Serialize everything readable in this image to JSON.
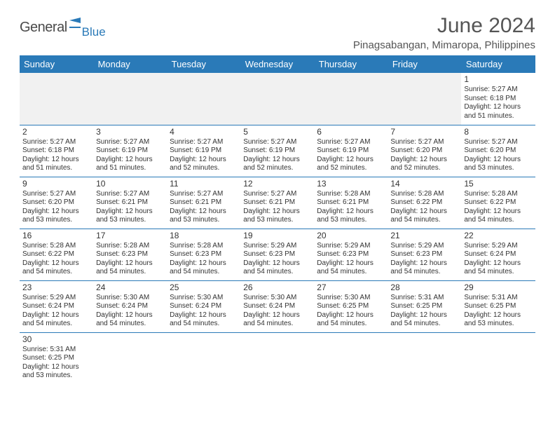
{
  "logo": {
    "text1": "General",
    "text2": "Blue"
  },
  "title": "June 2024",
  "location": "Pinagsabangan, Mimaropa, Philippines",
  "header_bg": "#2a7ab8",
  "days": [
    "Sunday",
    "Monday",
    "Tuesday",
    "Wednesday",
    "Thursday",
    "Friday",
    "Saturday"
  ],
  "first_weekday": 6,
  "cells": [
    {
      "n": 1,
      "sr": "5:27 AM",
      "ss": "6:18 PM",
      "dl": "12 hours and 51 minutes."
    },
    {
      "n": 2,
      "sr": "5:27 AM",
      "ss": "6:18 PM",
      "dl": "12 hours and 51 minutes."
    },
    {
      "n": 3,
      "sr": "5:27 AM",
      "ss": "6:19 PM",
      "dl": "12 hours and 51 minutes."
    },
    {
      "n": 4,
      "sr": "5:27 AM",
      "ss": "6:19 PM",
      "dl": "12 hours and 52 minutes."
    },
    {
      "n": 5,
      "sr": "5:27 AM",
      "ss": "6:19 PM",
      "dl": "12 hours and 52 minutes."
    },
    {
      "n": 6,
      "sr": "5:27 AM",
      "ss": "6:19 PM",
      "dl": "12 hours and 52 minutes."
    },
    {
      "n": 7,
      "sr": "5:27 AM",
      "ss": "6:20 PM",
      "dl": "12 hours and 52 minutes."
    },
    {
      "n": 8,
      "sr": "5:27 AM",
      "ss": "6:20 PM",
      "dl": "12 hours and 53 minutes."
    },
    {
      "n": 9,
      "sr": "5:27 AM",
      "ss": "6:20 PM",
      "dl": "12 hours and 53 minutes."
    },
    {
      "n": 10,
      "sr": "5:27 AM",
      "ss": "6:21 PM",
      "dl": "12 hours and 53 minutes."
    },
    {
      "n": 11,
      "sr": "5:27 AM",
      "ss": "6:21 PM",
      "dl": "12 hours and 53 minutes."
    },
    {
      "n": 12,
      "sr": "5:27 AM",
      "ss": "6:21 PM",
      "dl": "12 hours and 53 minutes."
    },
    {
      "n": 13,
      "sr": "5:28 AM",
      "ss": "6:21 PM",
      "dl": "12 hours and 53 minutes."
    },
    {
      "n": 14,
      "sr": "5:28 AM",
      "ss": "6:22 PM",
      "dl": "12 hours and 54 minutes."
    },
    {
      "n": 15,
      "sr": "5:28 AM",
      "ss": "6:22 PM",
      "dl": "12 hours and 54 minutes."
    },
    {
      "n": 16,
      "sr": "5:28 AM",
      "ss": "6:22 PM",
      "dl": "12 hours and 54 minutes."
    },
    {
      "n": 17,
      "sr": "5:28 AM",
      "ss": "6:23 PM",
      "dl": "12 hours and 54 minutes."
    },
    {
      "n": 18,
      "sr": "5:28 AM",
      "ss": "6:23 PM",
      "dl": "12 hours and 54 minutes."
    },
    {
      "n": 19,
      "sr": "5:29 AM",
      "ss": "6:23 PM",
      "dl": "12 hours and 54 minutes."
    },
    {
      "n": 20,
      "sr": "5:29 AM",
      "ss": "6:23 PM",
      "dl": "12 hours and 54 minutes."
    },
    {
      "n": 21,
      "sr": "5:29 AM",
      "ss": "6:23 PM",
      "dl": "12 hours and 54 minutes."
    },
    {
      "n": 22,
      "sr": "5:29 AM",
      "ss": "6:24 PM",
      "dl": "12 hours and 54 minutes."
    },
    {
      "n": 23,
      "sr": "5:29 AM",
      "ss": "6:24 PM",
      "dl": "12 hours and 54 minutes."
    },
    {
      "n": 24,
      "sr": "5:30 AM",
      "ss": "6:24 PM",
      "dl": "12 hours and 54 minutes."
    },
    {
      "n": 25,
      "sr": "5:30 AM",
      "ss": "6:24 PM",
      "dl": "12 hours and 54 minutes."
    },
    {
      "n": 26,
      "sr": "5:30 AM",
      "ss": "6:24 PM",
      "dl": "12 hours and 54 minutes."
    },
    {
      "n": 27,
      "sr": "5:30 AM",
      "ss": "6:25 PM",
      "dl": "12 hours and 54 minutes."
    },
    {
      "n": 28,
      "sr": "5:31 AM",
      "ss": "6:25 PM",
      "dl": "12 hours and 54 minutes."
    },
    {
      "n": 29,
      "sr": "5:31 AM",
      "ss": "6:25 PM",
      "dl": "12 hours and 53 minutes."
    },
    {
      "n": 30,
      "sr": "5:31 AM",
      "ss": "6:25 PM",
      "dl": "12 hours and 53 minutes."
    }
  ],
  "labels": {
    "sunrise": "Sunrise:",
    "sunset": "Sunset:",
    "daylight": "Daylight:"
  }
}
